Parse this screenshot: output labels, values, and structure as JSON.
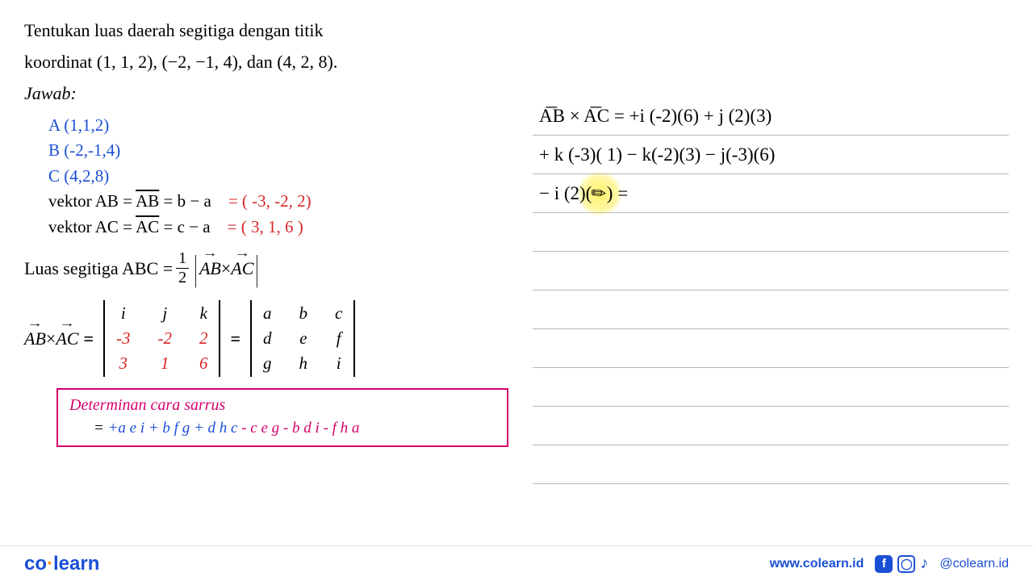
{
  "problem": {
    "line1": "Tentukan luas daerah segitiga dengan titik",
    "line2": "koordinat (1, 1, 2), (−2, −1, 4), dan (4, 2, 8).",
    "jawab": "Jawab:"
  },
  "points": {
    "A": "A (1,1,2)",
    "B": "B (-2,-1,4)",
    "C": "C (4,2,8)"
  },
  "vectors": {
    "ab_label": "vektor AB = ",
    "ab_sym": "AB",
    "ab_eq": " = b − a",
    "ab_val": "= ( -3, -2, 2)",
    "ac_label": "vektor AC = ",
    "ac_sym": "AC",
    "ac_eq": " = c − a",
    "ac_val": "= ( 3, 1, 6 )"
  },
  "luas": {
    "text": "Luas segitiga ABC = ",
    "half_num": "1",
    "half_den": "2",
    "ab": "AB",
    "cross": " × ",
    "ac": "AC"
  },
  "matrix": {
    "lhs_ab": "AB",
    "lhs_x": " × ",
    "lhs_ac": "AC",
    "eq": " = ",
    "cells1": [
      "i",
      "j",
      "k",
      "-3",
      "-2",
      "2",
      "3",
      "1",
      "6"
    ],
    "cells1_colors": [
      "#000",
      "#000",
      "#000",
      "#d62728",
      "#d62728",
      "#d62728",
      "#d62728",
      "#d62728",
      "#d62728"
    ],
    "cells2": [
      "a",
      "b",
      "c",
      "d",
      "e",
      "f",
      "g",
      "h",
      "i"
    ]
  },
  "sarrus": {
    "title": "Determinan cara sarrus",
    "eq_prefix": "=  ",
    "pos": "+a e i + b f g + d h c ",
    "neg": "- c e g - b d i - f h a"
  },
  "work": {
    "line1": "A͞B × A͞C  =  +i (-2)(6)  +  j (2)(3)",
    "line2": " + k (-3)( 1)  −  k(-2)(3)  −  j(-3)(6)",
    "line3_a": " − i (2)(",
    "line3_b": ")  ="
  },
  "footer": {
    "logo_co": "co",
    "logo_dot": "·",
    "logo_learn": "learn",
    "url": "www.colearn.id",
    "handle": "@colearn.id"
  },
  "colors": {
    "blue": "#1a4fd6",
    "red": "#d62728",
    "pink": "#d6006c",
    "orange": "#ff9500",
    "rule": "#b8b8b8",
    "highlight": "#fff050"
  }
}
